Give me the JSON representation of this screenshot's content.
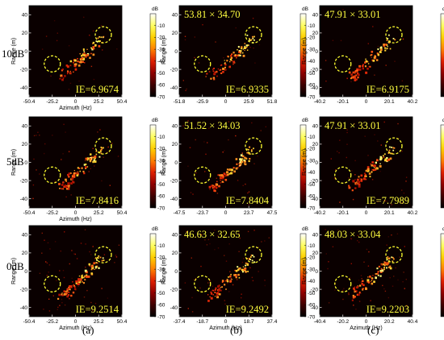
{
  "figure": {
    "row_labels": [
      "10dB",
      "5dB",
      "0dB"
    ],
    "column_labels": [
      "(a)",
      "(b)",
      "(c)"
    ]
  },
  "colorbar": {
    "unit": "dB",
    "ticks": [
      "-10",
      "-20",
      "-30",
      "-40",
      "-50",
      "-60",
      "-70"
    ],
    "colormap": [
      "#ffffff",
      "#ffff60",
      "#ffd000",
      "#ff8000",
      "#e02000",
      "#900000",
      "#400000",
      "#000000"
    ]
  },
  "chart_data": [
    {
      "type": "heatmap",
      "row": 0,
      "col": 0,
      "xlabel": "Azimuth (Hz)",
      "ylabel": "Range (m)",
      "xticks": [
        "-50.4",
        "-25.2",
        "0",
        "25.2",
        "50.4"
      ],
      "xlim": [
        -50.4,
        50.4
      ],
      "yticks": [
        "40",
        "20",
        "0",
        "-20",
        "-40"
      ],
      "ylim": [
        -50,
        50
      ],
      "zlim": [
        -70,
        0
      ],
      "overlay_text": "",
      "ie_label": "IE=6.9674"
    },
    {
      "type": "heatmap",
      "row": 0,
      "col": 1,
      "xlabel": "",
      "ylabel": "Range (m)",
      "xticks": [
        "-51.8",
        "-25.9",
        "0",
        "25.9",
        "51.8"
      ],
      "xlim": [
        -51.8,
        51.8
      ],
      "yticks": [
        "40",
        "20",
        "0",
        "-20",
        "-40"
      ],
      "ylim": [
        -50,
        50
      ],
      "zlim": [
        -70,
        0
      ],
      "overlay_text": "53.81 × 34.70",
      "ie_label": "IE=6.9335"
    },
    {
      "type": "heatmap",
      "row": 0,
      "col": 2,
      "xlabel": "",
      "ylabel": "Range (m)",
      "xticks": [
        "-40.2",
        "-20.1",
        "0",
        "20.1",
        "40.2"
      ],
      "xlim": [
        -40.2,
        40.2
      ],
      "yticks": [
        "40",
        "20",
        "0",
        "-20",
        "-40"
      ],
      "ylim": [
        -50,
        50
      ],
      "zlim": [
        -70,
        0
      ],
      "overlay_text": "47.91 × 33.01",
      "ie_label": "IE=6.9175"
    },
    {
      "type": "heatmap",
      "row": 1,
      "col": 0,
      "xlabel": "Azimuth (Hz)",
      "ylabel": "Range (m)",
      "xticks": [
        "-50.4",
        "-25.2",
        "0",
        "25.2",
        "50.4"
      ],
      "xlim": [
        -50.4,
        50.4
      ],
      "yticks": [
        "40",
        "20",
        "0",
        "-20",
        "-40"
      ],
      "ylim": [
        -50,
        50
      ],
      "zlim": [
        -70,
        0
      ],
      "overlay_text": "",
      "ie_label": "IE=7.8416"
    },
    {
      "type": "heatmap",
      "row": 1,
      "col": 1,
      "xlabel": "",
      "ylabel": "Range (m)",
      "xticks": [
        "-47.5",
        "-23.7",
        "0",
        "23.7",
        "47.5"
      ],
      "xlim": [
        -47.5,
        47.5
      ],
      "yticks": [
        "40",
        "20",
        "0",
        "-20",
        "-40"
      ],
      "ylim": [
        -50,
        50
      ],
      "zlim": [
        -70,
        0
      ],
      "overlay_text": "51.52 × 34.03",
      "ie_label": "IE=7.8404"
    },
    {
      "type": "heatmap",
      "row": 1,
      "col": 2,
      "xlabel": "",
      "ylabel": "Range (m)",
      "xticks": [
        "-40.2",
        "-20.1",
        "0",
        "20.1",
        "40.2"
      ],
      "xlim": [
        -40.2,
        40.2
      ],
      "yticks": [
        "40",
        "20",
        "0",
        "-20",
        "-40"
      ],
      "ylim": [
        -50,
        50
      ],
      "zlim": [
        -70,
        0
      ],
      "overlay_text": "47.91 × 33.01",
      "ie_label": "IE=7.7989"
    },
    {
      "type": "heatmap",
      "row": 2,
      "col": 0,
      "xlabel": "Azimuth (Hz)",
      "ylabel": "Range (m)",
      "xticks": [
        "-50.4",
        "-25.2",
        "0",
        "25.2",
        "50.4"
      ],
      "xlim": [
        -50.4,
        50.4
      ],
      "yticks": [
        "40",
        "20",
        "0",
        "-20",
        "-40"
      ],
      "ylim": [
        -50,
        50
      ],
      "zlim": [
        -70,
        0
      ],
      "overlay_text": "",
      "ie_label": "IE=9.2514"
    },
    {
      "type": "heatmap",
      "row": 2,
      "col": 1,
      "xlabel": "Azimuth (Hz)",
      "ylabel": "Range (m)",
      "xticks": [
        "-37.4",
        "-18.7",
        "0",
        "18.7",
        "37.4"
      ],
      "xlim": [
        -37.4,
        37.4
      ],
      "yticks": [
        "40",
        "20",
        "0",
        "-20",
        "-40"
      ],
      "ylim": [
        -50,
        50
      ],
      "zlim": [
        -70,
        0
      ],
      "overlay_text": "46.63 × 32.65",
      "ie_label": "IE=9.2492"
    },
    {
      "type": "heatmap",
      "row": 2,
      "col": 2,
      "xlabel": "Azimuth (Hz)",
      "ylabel": "Range (m)",
      "xticks": [
        "-40.4",
        "-20.2",
        "0",
        "20.2",
        "40.4"
      ],
      "xlim": [
        -40.4,
        40.4
      ],
      "yticks": [
        "40",
        "20",
        "0",
        "-20",
        "-40"
      ],
      "ylim": [
        -50,
        50
      ],
      "zlim": [
        -70,
        0
      ],
      "overlay_text": "48.03 × 33.04",
      "ie_label": "IE=9.2203"
    }
  ]
}
